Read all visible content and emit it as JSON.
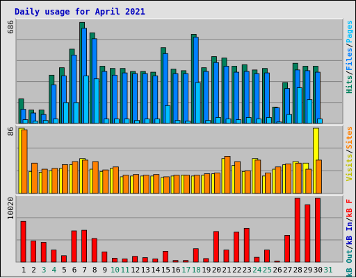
{
  "title": "Daily usage for April 2021",
  "colors": {
    "background": "#e0e0e0",
    "plot_background": "#c0c0c0",
    "grid": "#808080",
    "hits": "#00805c",
    "files": "#0080ff",
    "pages": "#00c0ff",
    "visits": "#ffff00",
    "sites": "#ff8000",
    "kbin": "#0000c0",
    "kbout": "#008080",
    "kbf": "#ff0000",
    "weekend_label": "#00805c",
    "weekday_label": "#000000",
    "title": "#0000c0"
  },
  "chart_data": [
    {
      "type": "bar",
      "panel": "hits_files_pages",
      "ytick": "686",
      "ylim": [
        0,
        686
      ],
      "legend": {
        "pages": "Pages",
        "files": "Files",
        "hits": "Hits",
        "sep": "/"
      },
      "series": [
        {
          "name": "Hits",
          "values": [
            165,
            90,
            90,
            325,
            375,
            500,
            680,
            610,
            385,
            370,
            370,
            350,
            350,
            345,
            510,
            365,
            355,
            600,
            375,
            450,
            440,
            385,
            395,
            360,
            370,
            110,
            275,
            405,
            385,
            385
          ]
        },
        {
          "name": "Files",
          "values": [
            95,
            70,
            60,
            260,
            320,
            460,
            640,
            570,
            350,
            325,
            340,
            335,
            335,
            320,
            470,
            335,
            335,
            580,
            350,
            410,
            385,
            345,
            350,
            335,
            340,
            105,
            235,
            360,
            355,
            345
          ]
        },
        {
          "name": "Pages",
          "values": [
            25,
            15,
            20,
            30,
            140,
            140,
            320,
            300,
            30,
            30,
            30,
            20,
            30,
            30,
            120,
            20,
            15,
            275,
            20,
            40,
            30,
            25,
            40,
            30,
            40,
            10,
            60,
            240,
            160,
            30
          ]
        }
      ]
    },
    {
      "type": "bar",
      "panel": "visits_sites",
      "ytick": "86",
      "ylim": [
        0,
        86
      ],
      "legend": {
        "visits": "Visits",
        "sites": "Sites",
        "sep": "/"
      },
      "series": [
        {
          "name": "Visits",
          "values": [
            86,
            29,
            28,
            30,
            33,
            38,
            46,
            32,
            29,
            33,
            22,
            23,
            23,
            23,
            21,
            23,
            24,
            23,
            24,
            26,
            46,
            37,
            29,
            46,
            23,
            32,
            38,
            42,
            40,
            86
          ]
        },
        {
          "name": "Sites",
          "values": [
            84,
            40,
            32,
            33,
            38,
            42,
            44,
            42,
            31,
            35,
            24,
            25,
            24,
            25,
            22,
            24,
            24,
            24,
            26,
            27,
            49,
            42,
            30,
            44,
            27,
            35,
            39,
            40,
            32,
            44
          ]
        }
      ]
    },
    {
      "type": "bar",
      "panel": "kb",
      "ytick": "10020",
      "ylim": [
        0,
        10020
      ],
      "legend": {
        "kbf": "kB F",
        "kbin": "kB In",
        "kbout": "kB Out",
        "sep": "/"
      },
      "series": [
        {
          "name": "kB F",
          "values": [
            6400,
            3300,
            3100,
            1900,
            1000,
            4900,
            5000,
            3700,
            1600,
            600,
            500,
            900,
            700,
            500,
            1700,
            250,
            250,
            2100,
            550,
            4800,
            1900,
            4700,
            5300,
            750,
            1900,
            150,
            4200,
            10020,
            9000,
            10020
          ]
        }
      ]
    }
  ],
  "x_labels": [
    "1",
    "2",
    "3",
    "4",
    "5",
    "6",
    "7",
    "8",
    "9",
    "10",
    "11",
    "12",
    "13",
    "14",
    "15",
    "16",
    "17",
    "18",
    "19",
    "20",
    "21",
    "22",
    "23",
    "24",
    "25",
    "26",
    "27",
    "28",
    "29",
    "30",
    "31"
  ],
  "weekend_days": [
    3,
    4,
    10,
    11,
    17,
    18,
    24,
    25,
    31
  ]
}
